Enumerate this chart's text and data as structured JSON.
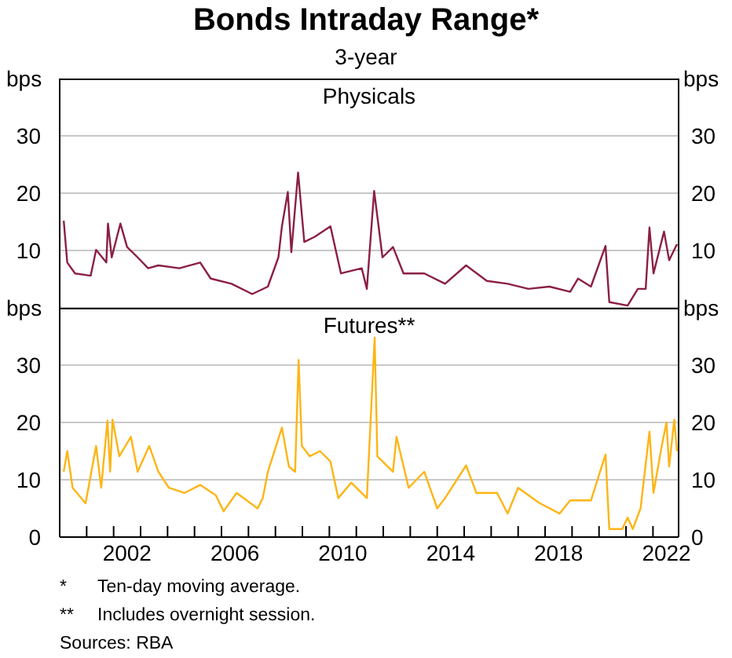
{
  "chart_data": [
    {
      "type": "line",
      "title": "Bonds Intraday Range*",
      "subtitle": "3-year",
      "ylabel": "bps",
      "y2label": "bps",
      "annotations": [
        "Physicals"
      ],
      "xlim": [
        2000,
        2022.95
      ],
      "ylim": [
        0,
        40
      ],
      "yticks": [
        10,
        20,
        30
      ],
      "y2lim": [
        0,
        40
      ],
      "y2ticks": [
        10,
        20,
        30
      ],
      "grid": "y",
      "tick_labels": "y",
      "series": [
        {
          "color": "#8b1f45",
          "x": [
            2000.15,
            2000.28,
            2000.57,
            2001.15,
            2001.35,
            2001.73,
            2001.79,
            2001.93,
            2002.25,
            2002.5,
            2002.89,
            2003.28,
            2003.66,
            2004.44,
            2005.21,
            2005.6,
            2006.37,
            2007.14,
            2007.72,
            2008.11,
            2008.24,
            2008.46,
            2008.59,
            2008.84,
            2009.07,
            2009.46,
            2010.04,
            2010.43,
            2011.2,
            2011.39,
            2011.66,
            2011.97,
            2012.36,
            2012.75,
            2013.52,
            2014.29,
            2015.07,
            2015.84,
            2016.61,
            2017.38,
            2018.16,
            2018.93,
            2019.22,
            2019.7,
            2020.24,
            2020.38,
            2021.06,
            2021.44,
            2021.73,
            2021.87,
            2022.02,
            2022.41,
            2022.6,
            2022.89
          ],
          "values": [
            15.2,
            7.9,
            6.0,
            5.6,
            10.1,
            7.9,
            14.7,
            8.8,
            14.7,
            10.6,
            8.8,
            6.9,
            7.4,
            6.9,
            7.9,
            5.1,
            4.2,
            2.4,
            3.7,
            8.8,
            14.2,
            20.2,
            9.7,
            23.6,
            11.5,
            12.4,
            14.2,
            6.0,
            6.9,
            3.3,
            20.4,
            8.8,
            10.6,
            6.0,
            6.0,
            4.2,
            7.4,
            4.7,
            4.2,
            3.3,
            3.7,
            2.8,
            5.1,
            3.7,
            10.8,
            1.0,
            0.4,
            3.3,
            3.3,
            14.0,
            6.0,
            13.3,
            8.3,
            11.1
          ]
        }
      ]
    },
    {
      "type": "line",
      "ylabel": "bps",
      "y2label": "bps",
      "title": "Futures**",
      "xlim": [
        2000,
        2022.95
      ],
      "ylim": [
        0,
        40
      ],
      "yticks": [
        0,
        10,
        20,
        30
      ],
      "y2lim": [
        0,
        40
      ],
      "y2ticks": [
        0,
        10,
        20,
        30
      ],
      "grid": "y",
      "xticks": [
        {
          "value": 2000,
          "label": null
        },
        {
          "value": 2001,
          "label": null
        },
        {
          "value": 2002,
          "label": null
        },
        {
          "value": 2002.5,
          "label": "2002"
        },
        {
          "value": 2003,
          "label": null
        },
        {
          "value": 2004,
          "label": null
        },
        {
          "value": 2005,
          "label": null
        },
        {
          "value": 2006,
          "label": null
        },
        {
          "value": 2006.5,
          "label": "2006"
        },
        {
          "value": 2007,
          "label": null
        },
        {
          "value": 2008,
          "label": null
        },
        {
          "value": 2009,
          "label": null
        },
        {
          "value": 2010,
          "label": null
        },
        {
          "value": 2010.5,
          "label": "2010"
        },
        {
          "value": 2011,
          "label": null
        },
        {
          "value": 2012,
          "label": null
        },
        {
          "value": 2013,
          "label": null
        },
        {
          "value": 2014,
          "label": null
        },
        {
          "value": 2014.5,
          "label": "2014"
        },
        {
          "value": 2015,
          "label": null
        },
        {
          "value": 2016,
          "label": null
        },
        {
          "value": 2017,
          "label": null
        },
        {
          "value": 2018,
          "label": null
        },
        {
          "value": 2018.5,
          "label": "2018"
        },
        {
          "value": 2019,
          "label": null
        },
        {
          "value": 2020,
          "label": null
        },
        {
          "value": 2021,
          "label": null
        },
        {
          "value": 2022,
          "label": null
        },
        {
          "value": 2022.5,
          "label": "2022"
        }
      ],
      "series": [
        {
          "color": "#fdb515",
          "x": [
            2000.15,
            2000.28,
            2000.48,
            2000.96,
            2001.35,
            2001.54,
            2001.77,
            2001.87,
            2001.96,
            2002.21,
            2002.64,
            2002.89,
            2003.32,
            2003.66,
            2004.05,
            2004.63,
            2005.21,
            2005.79,
            2006.08,
            2006.56,
            2007.34,
            2007.53,
            2007.72,
            2008.24,
            2008.5,
            2008.73,
            2008.86,
            2008.98,
            2009.27,
            2009.65,
            2010.04,
            2010.33,
            2010.81,
            2011.39,
            2011.68,
            2011.78,
            2012.36,
            2012.49,
            2012.94,
            2013.52,
            2014.0,
            2014.29,
            2015.07,
            2015.45,
            2016.22,
            2016.61,
            2017.0,
            2017.77,
            2018.54,
            2018.93,
            2019.7,
            2020.24,
            2020.38,
            2020.86,
            2021.06,
            2021.25,
            2021.54,
            2021.87,
            2022.02,
            2022.31,
            2022.5,
            2022.6,
            2022.79,
            2022.89
          ],
          "values": [
            11.4,
            15.0,
            8.6,
            5.9,
            15.9,
            8.6,
            20.3,
            11.4,
            20.5,
            14.1,
            17.5,
            11.4,
            15.9,
            11.4,
            8.6,
            7.7,
            9.1,
            7.3,
            4.5,
            7.7,
            5.0,
            6.8,
            11.4,
            19.1,
            12.3,
            11.4,
            30.9,
            15.9,
            14.1,
            15.0,
            13.2,
            6.8,
            9.5,
            6.8,
            34.8,
            14.1,
            11.4,
            17.5,
            8.6,
            11.4,
            5.0,
            6.8,
            12.5,
            7.7,
            7.7,
            4.1,
            8.6,
            6.0,
            4.1,
            6.4,
            6.4,
            14.4,
            1.4,
            1.4,
            3.4,
            1.4,
            5.0,
            18.4,
            7.7,
            15.5,
            20.0,
            12.3,
            20.5,
            15.0
          ]
        }
      ],
      "annotations": [
        "* Ten-day moving average.",
        "** Includes overnight session.",
        "Sources: RBA"
      ]
    }
  ]
}
